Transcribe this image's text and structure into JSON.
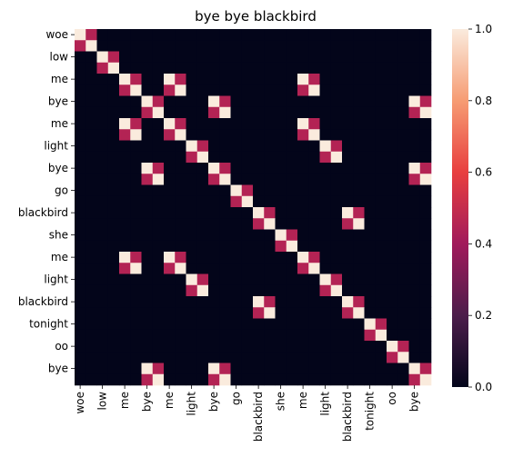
{
  "chart_data": {
    "type": "heatmap",
    "title": "bye bye blackbird",
    "xlabel": "",
    "ylabel": "",
    "tokens": [
      "woe",
      "woe",
      "low",
      "low",
      "me",
      "me",
      "bye",
      "bye",
      "me",
      "me",
      "light",
      "light",
      "bye",
      "bye",
      "go",
      "go",
      "blackbird",
      "blackbird",
      "she",
      "she",
      "me",
      "me",
      "light",
      "light",
      "blackbird",
      "blackbird",
      "tonight",
      "tonight",
      "oo",
      "oo",
      "bye",
      "bye"
    ],
    "x_tick_labels": [
      "woe",
      "low",
      "me",
      "bye",
      "me",
      "light",
      "bye",
      "go",
      "blackbird",
      "she",
      "me",
      "light",
      "blackbird",
      "tonight",
      "oo",
      "bye"
    ],
    "y_tick_labels": [
      "woe",
      "low",
      "me",
      "bye",
      "me",
      "light",
      "bye",
      "go",
      "blackbird",
      "she",
      "me",
      "light",
      "blackbird",
      "tonight",
      "oo",
      "bye"
    ],
    "colorbar": {
      "min": 0.0,
      "max": 1.0,
      "ticks": [
        "0.0",
        "0.2",
        "0.4",
        "0.6",
        "0.8",
        "1.0"
      ]
    },
    "colormap": [
      "#03051a",
      "#4c1d4b",
      "#a11a5b",
      "#e83f3f",
      "#f69c73",
      "#faebdd"
    ],
    "grid": false,
    "legend": "colorbar-right"
  }
}
